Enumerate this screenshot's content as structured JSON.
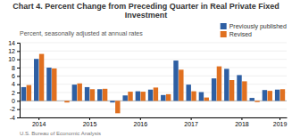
{
  "chart_data": {
    "type": "bar",
    "title": "Chart 4. Percent Change from Preceding Quarter in Real Private Fixed Investment",
    "subtitle": "Percent, seasonally adjusted at annual rates",
    "annotations": [
      "U.S. Bureau of Economic Analysis"
    ],
    "categories": [
      null,
      "2014",
      null,
      null,
      null,
      "2015",
      null,
      null,
      null,
      "2016",
      null,
      null,
      null,
      "2017",
      null,
      null,
      null,
      "2018",
      null,
      null,
      "2019"
    ],
    "series": [
      {
        "name": "Previously published",
        "color": "#2E5FA3",
        "values": [
          3.3,
          10.1,
          8.0,
          0.0,
          3.9,
          3.3,
          2.8,
          -0.4,
          1.3,
          2.3,
          2.7,
          1.4,
          9.7,
          3.9,
          2.1,
          5.4,
          7.7,
          6.2,
          0.7,
          2.6,
          2.7
        ]
      },
      {
        "name": "Revised",
        "color": "#E07020",
        "values": [
          3.8,
          11.3,
          7.8,
          -0.4,
          4.2,
          2.8,
          2.9,
          -3.0,
          2.2,
          2.2,
          3.2,
          1.6,
          7.5,
          2.3,
          0.8,
          8.3,
          5.0,
          4.7,
          -0.3,
          2.4,
          2.8
        ]
      }
    ],
    "ylim": [
      -4,
      14
    ],
    "yticks": [
      -4,
      -2,
      0,
      2,
      4,
      6,
      8,
      10,
      12,
      14
    ],
    "grid": true,
    "legend": "top-right"
  }
}
